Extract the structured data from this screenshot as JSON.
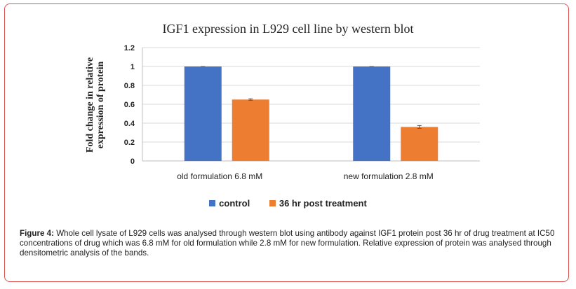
{
  "chart_data": {
    "type": "bar",
    "title": "IGF1 expression in L929 cell line by western blot",
    "ylabel": "Fold change in relative expression of protein",
    "xlabel": "",
    "categories": [
      "old formulation 6.8 mM",
      "new formulation 2.8 mM"
    ],
    "series": [
      {
        "name": "control",
        "values": [
          1.0,
          1.0
        ],
        "errors": [
          0.0,
          0.0
        ],
        "color": "#4472c4"
      },
      {
        "name": "36 hr post treatment",
        "values": [
          0.65,
          0.36
        ],
        "errors": [
          0.008,
          0.015
        ],
        "color": "#ed7d31"
      }
    ],
    "ylim": [
      0,
      1.2
    ],
    "yticks": [
      "0",
      "0.2",
      "0.4",
      "0.6",
      "0.8",
      "1",
      "1.2"
    ],
    "ytick_values": [
      0,
      0.2,
      0.4,
      0.6,
      0.8,
      1.0,
      1.2
    ],
    "grid": true,
    "legend_position": "bottom"
  },
  "caption": {
    "label": "Figure 4:",
    "text": "Whole cell lysate of L929 cells was analysed through western blot using antibody against IGF1 protein post 36 hr of drug treatment at IC50 concentrations of drug which was 6.8 mM for old formulation while 2.8 mM for new formulation. Relative expression of protein was analysed through densitometric analysis of the bands."
  }
}
